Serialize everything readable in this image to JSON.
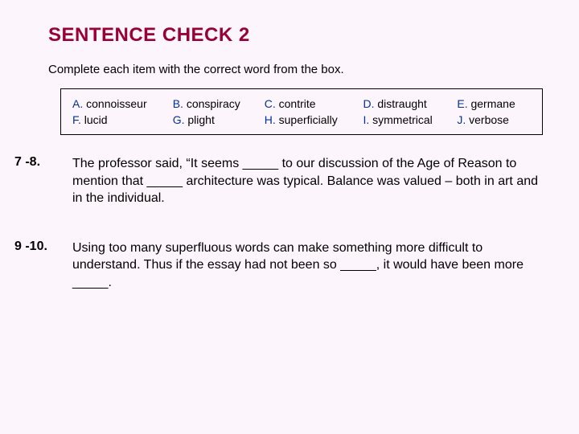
{
  "title": "SENTENCE CHECK 2",
  "instruction": "Complete each item with the correct word from the box.",
  "colors": {
    "background": "#fdf5fc",
    "title": "#990033",
    "letter": "#003399",
    "text": "#000000",
    "border": "#000000"
  },
  "typography": {
    "title_fontsize": 24,
    "instruction_fontsize": 15,
    "box_fontsize": 14,
    "question_fontsize": 16,
    "font_family": "Verdana"
  },
  "wordbox": {
    "rows": [
      [
        {
          "letter": "A.",
          "word": "connoisseur"
        },
        {
          "letter": "B.",
          "word": "conspiracy"
        },
        {
          "letter": "C.",
          "word": "contrite"
        },
        {
          "letter": "D.",
          "word": "distraught"
        },
        {
          "letter": "E.",
          "word": "germane"
        }
      ],
      [
        {
          "letter": "F.",
          "word": "lucid"
        },
        {
          "letter": "G.",
          "word": "plight"
        },
        {
          "letter": "H.",
          "word": "superficially"
        },
        {
          "letter": "I.",
          "word": "symmetrical"
        },
        {
          "letter": "J.",
          "word": "verbose"
        }
      ]
    ]
  },
  "questions": [
    {
      "num": "7 -8.",
      "text": "The professor said, “It seems _____ to our discussion of the Age of Reason to mention that _____ architecture was typical. Balance was valued – both in art and in the individual."
    },
    {
      "num": "9 -10.",
      "text": "Using too many superfluous words can make something more difficult to understand.  Thus if the essay had not been so _____, it would have been more _____."
    }
  ]
}
